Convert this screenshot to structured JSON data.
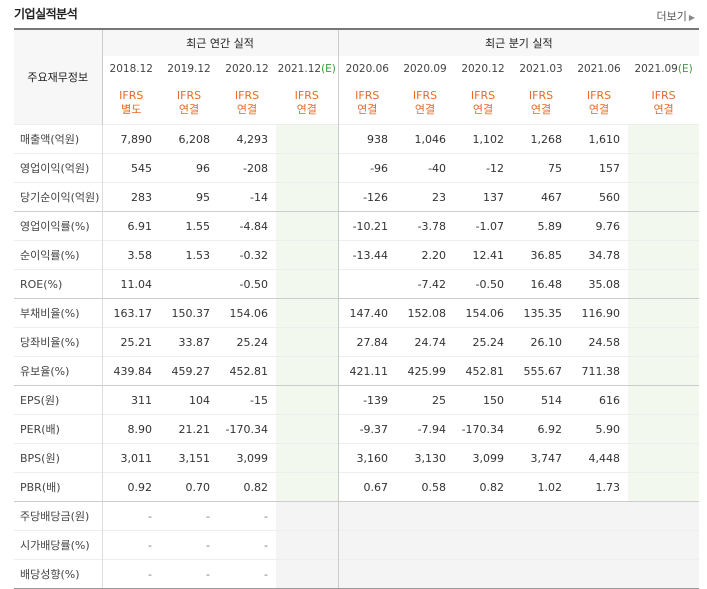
{
  "title": "기업실적분석",
  "more_label": "더보기",
  "header": {
    "row_label": "주요재무정보",
    "annual_label": "최근 연간 실적",
    "quarterly_label": "최근 분기 실적",
    "annual_dates": [
      "2018.12",
      "2019.12",
      "2020.12",
      "2021.12"
    ],
    "quarterly_dates": [
      "2020.06",
      "2020.09",
      "2020.12",
      "2021.03",
      "2021.06",
      "2021.09"
    ],
    "est_mark": "(E)",
    "types": [
      [
        "IFRS",
        "별도"
      ],
      [
        "IFRS",
        "연결"
      ],
      [
        "IFRS",
        "연결"
      ],
      [
        "IFRS",
        "연결"
      ],
      [
        "IFRS",
        "연결"
      ],
      [
        "IFRS",
        "연결"
      ],
      [
        "IFRS",
        "연결"
      ],
      [
        "IFRS",
        "연결"
      ],
      [
        "IFRS",
        "연결"
      ],
      [
        "IFRS",
        "연결"
      ]
    ]
  },
  "rows": [
    {
      "label": "매출액(억원)",
      "values": [
        "7,890",
        "6,208",
        "4,293",
        "",
        "938",
        "1,046",
        "1,102",
        "1,268",
        "1,610",
        ""
      ]
    },
    {
      "label": "영업이익(억원)",
      "values": [
        "545",
        "96",
        "-208",
        "",
        "-96",
        "-40",
        "-12",
        "75",
        "157",
        ""
      ]
    },
    {
      "label": "당기순이익(억원)",
      "values": [
        "283",
        "95",
        "-14",
        "",
        "-126",
        "23",
        "137",
        "467",
        "560",
        ""
      ]
    },
    {
      "label": "영업이익률(%)",
      "values": [
        "6.91",
        "1.55",
        "-4.84",
        "",
        "-10.21",
        "-3.78",
        "-1.07",
        "5.89",
        "9.76",
        ""
      ]
    },
    {
      "label": "순이익률(%)",
      "values": [
        "3.58",
        "1.53",
        "-0.32",
        "",
        "-13.44",
        "2.20",
        "12.41",
        "36.85",
        "34.78",
        ""
      ]
    },
    {
      "label": "ROE(%)",
      "values": [
        "11.04",
        "",
        "-0.50",
        "",
        "",
        "-7.42",
        "-0.50",
        "16.48",
        "35.08",
        ""
      ]
    },
    {
      "label": "부채비율(%)",
      "values": [
        "163.17",
        "150.37",
        "154.06",
        "",
        "147.40",
        "152.08",
        "154.06",
        "135.35",
        "116.90",
        ""
      ]
    },
    {
      "label": "당좌비율(%)",
      "values": [
        "25.21",
        "33.87",
        "25.24",
        "",
        "27.84",
        "24.74",
        "25.24",
        "26.10",
        "24.58",
        ""
      ]
    },
    {
      "label": "유보율(%)",
      "values": [
        "439.84",
        "459.27",
        "452.81",
        "",
        "421.11",
        "425.99",
        "452.81",
        "555.67",
        "711.38",
        ""
      ]
    },
    {
      "label": "EPS(원)",
      "values": [
        "311",
        "104",
        "-15",
        "",
        "-139",
        "25",
        "150",
        "514",
        "616",
        ""
      ]
    },
    {
      "label": "PER(배)",
      "values": [
        "8.90",
        "21.21",
        "-170.34",
        "",
        "-9.37",
        "-7.94",
        "-170.34",
        "6.92",
        "5.90",
        ""
      ]
    },
    {
      "label": "BPS(원)",
      "values": [
        "3,011",
        "3,151",
        "3,099",
        "",
        "3,160",
        "3,130",
        "3,099",
        "3,747",
        "4,448",
        ""
      ]
    },
    {
      "label": "PBR(배)",
      "values": [
        "0.92",
        "0.70",
        "0.82",
        "",
        "0.67",
        "0.58",
        "0.82",
        "1.02",
        "1.73",
        ""
      ]
    },
    {
      "label": "주당배당금(원)",
      "values": [
        "-",
        "-",
        "-",
        "",
        "",
        "",
        "",
        "",
        "",
        ""
      ]
    },
    {
      "label": "시가배당률(%)",
      "values": [
        "-",
        "-",
        "-",
        "",
        "",
        "",
        "",
        "",
        "",
        ""
      ]
    },
    {
      "label": "배당성향(%)",
      "values": [
        "-",
        "-",
        "-",
        "",
        "",
        "",
        "",
        "",
        "",
        ""
      ]
    }
  ],
  "group_starts": [
    3,
    6,
    9,
    13
  ],
  "gray_rows_start": 13,
  "colors": {
    "accent": "#e8692a",
    "negative": "#e02e2e",
    "estimate_bg": "#f3f8ef",
    "estimate_text": "#3c9b3c"
  }
}
